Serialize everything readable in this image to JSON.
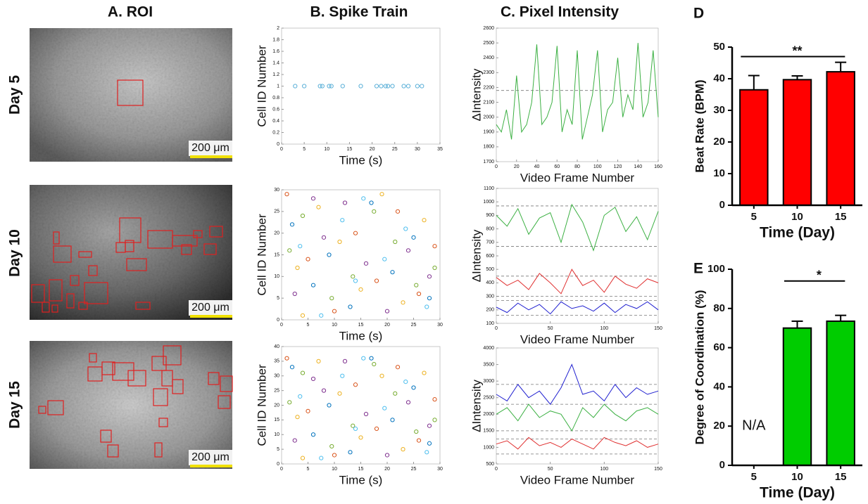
{
  "roi_panel": {
    "title": "A. ROI",
    "rows": [
      "Day 5",
      "Day 10",
      "Day 15"
    ],
    "scale_bar": "200 μm"
  },
  "spike_panel_title": "B. Spike Train",
  "intensity_panel_title": "C. Pixel Intensity",
  "chart_data": [
    {
      "type": "scatter",
      "ylabel": "Cell ID Number",
      "xlabel": "Time (s)",
      "xlim": [
        0,
        35
      ],
      "xticks": [
        0,
        5,
        10,
        15,
        20,
        25,
        30,
        35
      ],
      "ylim": [
        0,
        2
      ],
      "yticks": [
        0,
        0.2,
        0.4,
        0.6,
        0.8,
        1,
        1.2,
        1.4,
        1.6,
        1.8,
        2
      ],
      "series": [
        {
          "color": "#5bb0d8",
          "x": [
            3,
            5,
            8.5,
            9,
            10.5,
            11,
            13.5,
            17.5,
            21,
            22,
            23,
            23.5,
            24.5,
            27,
            28,
            30,
            31
          ],
          "values": [
            1,
            1,
            1,
            1,
            1,
            1,
            1,
            1,
            1,
            1,
            1,
            1,
            1,
            1,
            1,
            1,
            1
          ]
        }
      ]
    },
    {
      "type": "scatter",
      "ylabel": "Cell ID Number",
      "xlabel": "Time (s)",
      "xlim": [
        0,
        30
      ],
      "xticks": [
        0,
        5,
        10,
        15,
        20,
        25,
        30
      ],
      "ylim": [
        0,
        30
      ],
      "yticks": [
        0,
        5,
        10,
        15,
        20,
        25,
        30
      ],
      "series": [
        {
          "color": "#0072bd",
          "x": [
            2,
            6,
            9,
            13,
            17,
            21,
            25,
            28
          ],
          "values": [
            22,
            8,
            15,
            3,
            27,
            11,
            19,
            5
          ]
        },
        {
          "color": "#d95319",
          "x": [
            1,
            5,
            10,
            14,
            18,
            22,
            26,
            29
          ],
          "values": [
            29,
            14,
            2,
            20,
            9,
            25,
            6,
            17
          ]
        },
        {
          "color": "#edb120",
          "x": [
            3,
            7,
            11,
            15,
            19,
            23,
            27,
            4
          ],
          "values": [
            12,
            26,
            18,
            7,
            29,
            4,
            23,
            1
          ]
        },
        {
          "color": "#7e2f8e",
          "x": [
            2.5,
            8,
            12,
            16,
            20,
            24,
            28,
            6
          ],
          "values": [
            6,
            19,
            27,
            13,
            2,
            16,
            10,
            28
          ]
        },
        {
          "color": "#77ac30",
          "x": [
            4,
            9.5,
            13.5,
            17.5,
            21.5,
            25.5,
            1.5,
            29
          ],
          "values": [
            24,
            5,
            10,
            25,
            18,
            8,
            16,
            12
          ]
        },
        {
          "color": "#4dbeee",
          "x": [
            3.5,
            7.5,
            11.5,
            15.5,
            19.5,
            23.5,
            27.5,
            14
          ],
          "values": [
            17,
            1,
            23,
            28,
            14,
            21,
            3,
            9
          ]
        }
      ]
    },
    {
      "type": "scatter",
      "ylabel": "Cell ID Number",
      "xlabel": "Time (s)",
      "xlim": [
        0,
        30
      ],
      "xticks": [
        0,
        5,
        10,
        15,
        20,
        25,
        30
      ],
      "ylim": [
        0,
        40
      ],
      "yticks": [
        0,
        5,
        10,
        15,
        20,
        25,
        30,
        35,
        40
      ],
      "series": [
        {
          "color": "#0072bd",
          "x": [
            2,
            6,
            9,
            13,
            17,
            21,
            25,
            28
          ],
          "values": [
            33,
            10,
            20,
            4,
            36,
            15,
            26,
            7
          ]
        },
        {
          "color": "#d95319",
          "x": [
            1,
            5,
            10,
            14,
            18,
            22,
            26,
            29
          ],
          "values": [
            36,
            18,
            3,
            27,
            12,
            33,
            8,
            22
          ]
        },
        {
          "color": "#edb120",
          "x": [
            3,
            7,
            11,
            15,
            19,
            23,
            27,
            4
          ],
          "values": [
            16,
            35,
            24,
            9,
            30,
            5,
            31,
            2
          ]
        },
        {
          "color": "#7e2f8e",
          "x": [
            2.5,
            8,
            12,
            16,
            20,
            24,
            28,
            6
          ],
          "values": [
            8,
            25,
            35,
            17,
            3,
            21,
            13,
            29
          ]
        },
        {
          "color": "#77ac30",
          "x": [
            4,
            9.5,
            13.5,
            17.5,
            21.5,
            25.5,
            1.5,
            29
          ],
          "values": [
            31,
            6,
            13,
            34,
            24,
            11,
            21,
            15
          ]
        },
        {
          "color": "#4dbeee",
          "x": [
            3.5,
            7.5,
            11.5,
            15.5,
            19.5,
            23.5,
            27.5,
            14
          ],
          "values": [
            23,
            2,
            30,
            36,
            19,
            28,
            4,
            12
          ]
        }
      ]
    },
    {
      "type": "line",
      "ylabel": "ΔIntensity",
      "xlabel": "Video Frame Number",
      "xlim": [
        0,
        160
      ],
      "xticks": [
        0,
        20,
        40,
        60,
        80,
        100,
        120,
        140,
        160
      ],
      "ylim": [
        1700,
        2600
      ],
      "yticks": [
        1700,
        1800,
        1900,
        2000,
        2100,
        2200,
        2300,
        2400,
        2500,
        2600
      ],
      "reference_lines": [
        2180
      ],
      "x": [
        0,
        5,
        10,
        15,
        20,
        25,
        30,
        35,
        40,
        45,
        50,
        55,
        60,
        65,
        70,
        75,
        80,
        85,
        90,
        95,
        100,
        105,
        110,
        115,
        120,
        125,
        130,
        135,
        140,
        145,
        150,
        155,
        160
      ],
      "series": [
        {
          "color": "#3cb043",
          "values": [
            1950,
            1900,
            2050,
            1850,
            2280,
            1900,
            1950,
            2100,
            2490,
            1950,
            2000,
            2100,
            2480,
            1900,
            2050,
            1950,
            2450,
            1850,
            2000,
            2150,
            2450,
            1900,
            2050,
            2100,
            2400,
            2000,
            2150,
            2050,
            2500,
            2000,
            2100,
            2450,
            2000
          ]
        }
      ]
    },
    {
      "type": "line",
      "ylabel": "ΔIntensity",
      "xlabel": "Video Frame Number",
      "xlim": [
        0,
        150
      ],
      "xticks": [
        0,
        50,
        100,
        150
      ],
      "ylim": [
        100,
        1100
      ],
      "yticks": [
        100,
        200,
        300,
        400,
        500,
        600,
        700,
        800,
        900,
        1000,
        1100
      ],
      "reference_lines": [
        970,
        670,
        450,
        300,
        270,
        160
      ],
      "x": [
        0,
        10,
        20,
        30,
        40,
        50,
        60,
        70,
        80,
        90,
        100,
        110,
        120,
        130,
        140,
        150
      ],
      "series": [
        {
          "color": "#3cb043",
          "values": [
            900,
            820,
            950,
            760,
            880,
            920,
            700,
            980,
            850,
            640,
            900,
            960,
            780,
            890,
            720,
            930
          ]
        },
        {
          "color": "#e03030",
          "values": [
            440,
            380,
            420,
            350,
            470,
            400,
            320,
            500,
            380,
            420,
            330,
            450,
            390,
            360,
            430,
            400
          ]
        },
        {
          "color": "#2020d0",
          "values": [
            220,
            180,
            250,
            200,
            240,
            170,
            260,
            210,
            230,
            190,
            250,
            180,
            240,
            210,
            260,
            200
          ]
        }
      ]
    },
    {
      "type": "line",
      "ylabel": "ΔIntensity",
      "xlabel": "Video Frame Number",
      "xlim": [
        0,
        150
      ],
      "xticks": [
        0,
        50,
        100,
        150
      ],
      "ylim": [
        500,
        4000
      ],
      "yticks": [
        500,
        1000,
        1500,
        2000,
        2500,
        3000,
        3500,
        4000
      ],
      "reference_lines": [
        2900,
        2300,
        1500,
        1250,
        800
      ],
      "x": [
        0,
        10,
        20,
        30,
        40,
        50,
        60,
        70,
        80,
        90,
        100,
        110,
        120,
        130,
        140,
        150
      ],
      "series": [
        {
          "color": "#2020d0",
          "values": [
            2600,
            2400,
            2900,
            2500,
            2700,
            2300,
            2800,
            3500,
            2600,
            2700,
            2400,
            2900,
            2500,
            2800,
            2600,
            2700
          ]
        },
        {
          "color": "#3cb043",
          "values": [
            2000,
            2200,
            1800,
            2300,
            1900,
            2100,
            2000,
            1500,
            2200,
            1900,
            2300,
            2000,
            1800,
            2100,
            2200,
            2000
          ]
        },
        {
          "color": "#e03030",
          "values": [
            1100,
            1200,
            950,
            1300,
            1050,
            1150,
            1000,
            1250,
            1100,
            950,
            1300,
            1150,
            1050,
            1200,
            1000,
            1100
          ]
        }
      ]
    },
    {
      "type": "bar",
      "panel_label": "D",
      "ylabel": "Beat Rate (BPM)",
      "xlabel": "Time (Day)",
      "categories": [
        "5",
        "10",
        "15"
      ],
      "values": [
        36.5,
        39.7,
        42.2
      ],
      "errors": [
        4.5,
        1.2,
        3
      ],
      "color": "#ff0000",
      "ylim": [
        0,
        50
      ],
      "yticks": [
        0,
        10,
        20,
        30,
        40,
        50
      ],
      "significance": {
        "label": "**",
        "categories": [
          "5",
          "15"
        ]
      }
    },
    {
      "type": "bar",
      "panel_label": "E",
      "ylabel": "Degree of Coordination  (%)",
      "xlabel": "Time (Day)",
      "categories": [
        "5",
        "10",
        "15"
      ],
      "values": [
        null,
        70,
        73.5
      ],
      "value_labels": [
        "N/A",
        null,
        null
      ],
      "errors": [
        null,
        3.5,
        3
      ],
      "color": "#00cc00",
      "ylim": [
        0,
        100
      ],
      "yticks": [
        0,
        20,
        40,
        60,
        80,
        100
      ],
      "significance": {
        "label": "*",
        "categories": [
          "10",
          "15"
        ]
      }
    }
  ]
}
